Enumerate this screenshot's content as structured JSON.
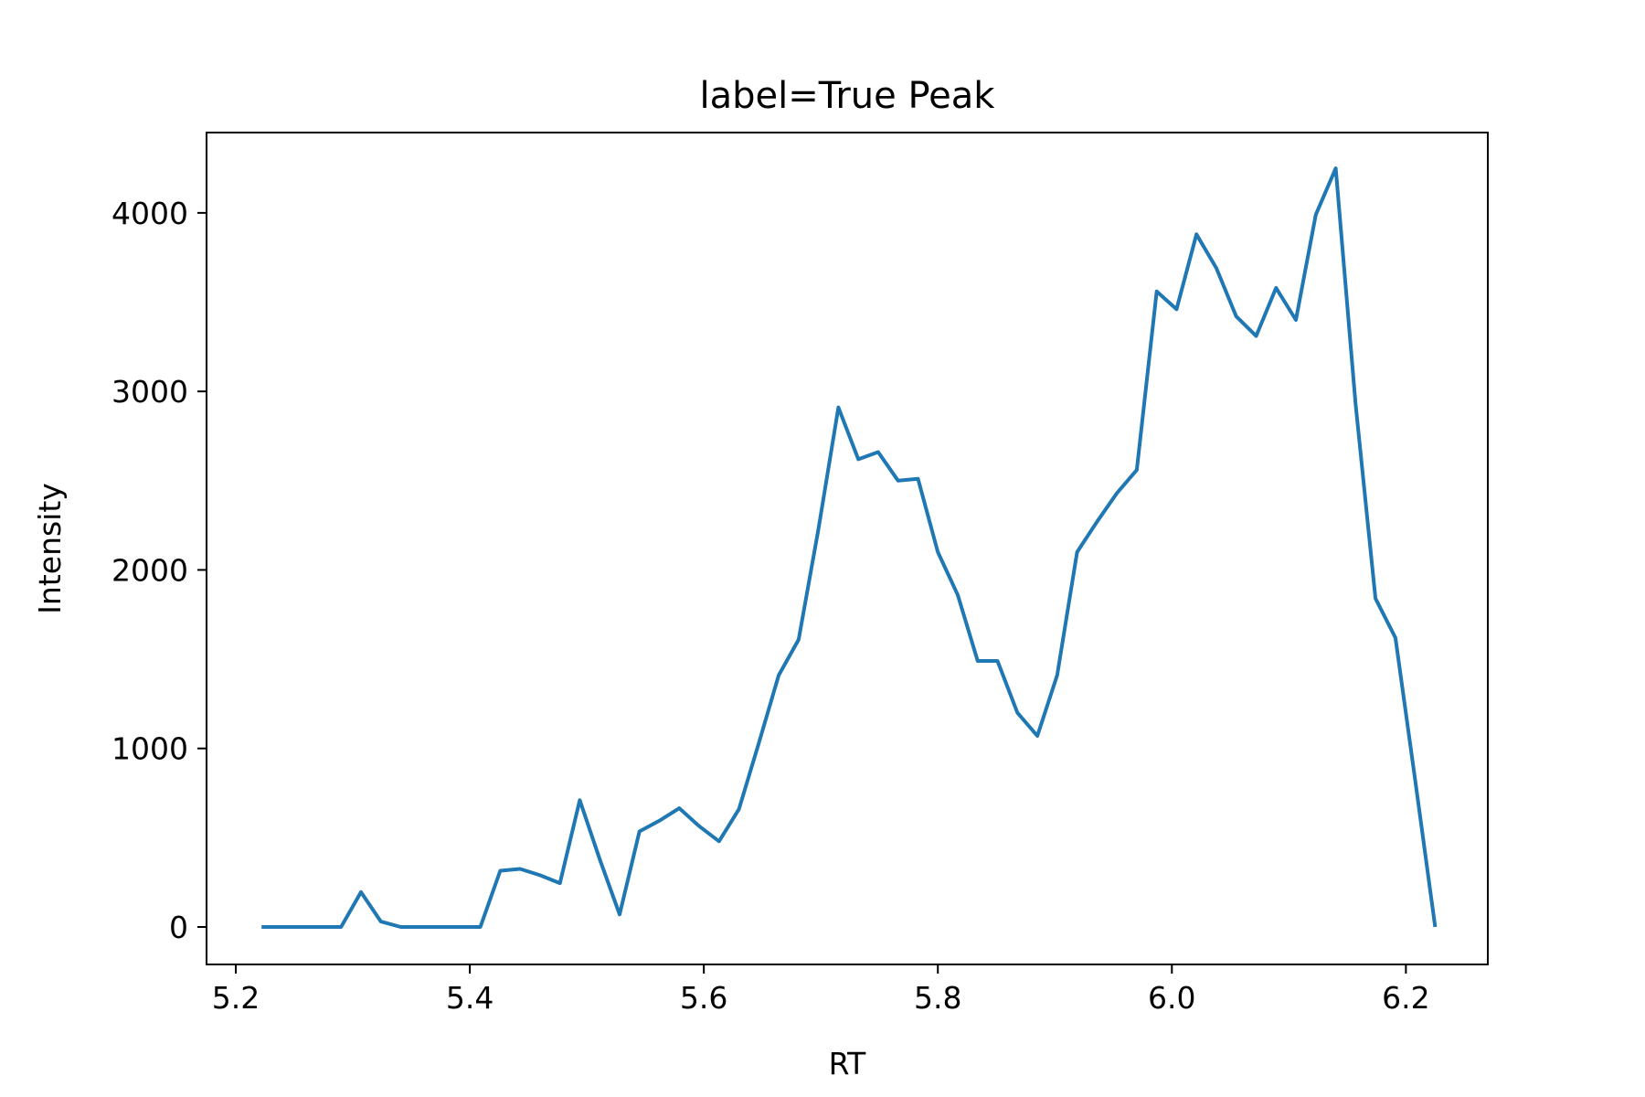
{
  "chart_data": {
    "type": "line",
    "title": "label=True Peak",
    "xlabel": "RT",
    "ylabel": "Intensity",
    "xlim": [
      5.175,
      6.27
    ],
    "ylim": [
      -210,
      4450
    ],
    "xticks": [
      5.2,
      5.4,
      5.6,
      5.8,
      6.0,
      6.2
    ],
    "xtick_labels": [
      "5.2",
      "5.4",
      "5.6",
      "5.8",
      "6.0",
      "6.2"
    ],
    "yticks": [
      0,
      1000,
      2000,
      3000,
      4000
    ],
    "ytick_labels": [
      "0",
      "1000",
      "2000",
      "3000",
      "4000"
    ],
    "grid": false,
    "line_color": "#1f77b4",
    "series": [
      {
        "x": [
          5.222,
          5.239,
          5.256,
          5.273,
          5.29,
          5.307,
          5.324,
          5.341,
          5.358,
          5.375,
          5.392,
          5.409,
          5.426,
          5.443,
          5.46,
          5.477,
          5.494,
          5.511,
          5.528,
          5.545,
          5.562,
          5.579,
          5.596,
          5.613,
          5.63,
          5.647,
          5.664,
          5.681,
          5.698,
          5.715,
          5.732,
          5.749,
          5.766,
          5.783,
          5.8,
          5.817,
          5.834,
          5.851,
          5.868,
          5.885,
          5.902,
          5.919,
          5.936,
          5.953,
          5.97,
          5.987,
          6.004,
          6.021,
          6.038,
          6.055,
          6.072,
          6.089,
          6.106,
          6.123,
          6.14,
          6.157,
          6.174,
          6.191,
          6.208,
          6.225
        ],
        "values": [
          0,
          0,
          0,
          0,
          0,
          195,
          30,
          0,
          0,
          0,
          0,
          0,
          315,
          325,
          290,
          245,
          710,
          380,
          70,
          535,
          595,
          665,
          565,
          480,
          660,
          1030,
          1410,
          1610,
          2230,
          2910,
          2620,
          2660,
          2500,
          2510,
          2100,
          1860,
          1490,
          1490,
          1200,
          1070,
          1410,
          2100,
          2270,
          2430,
          2560,
          3560,
          3460,
          3880,
          3690,
          3420,
          3310,
          3580,
          3400,
          3990,
          4250,
          2930,
          1840,
          1620,
          820,
          0
        ]
      }
    ]
  }
}
